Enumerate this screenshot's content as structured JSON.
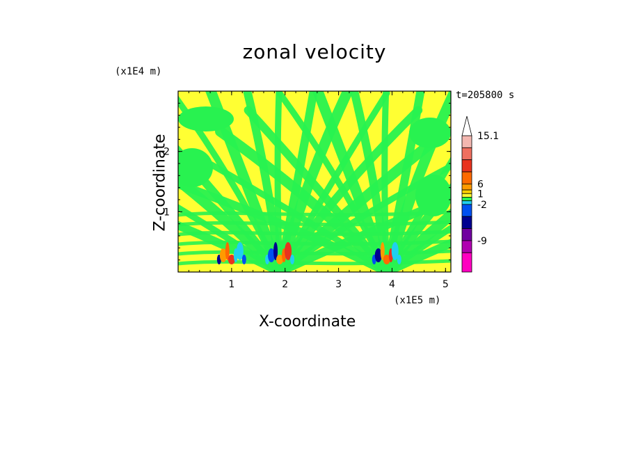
{
  "chart_data": {
    "type": "contour",
    "title": "zonal velocity",
    "xlabel": "X-coordinate",
    "ylabel": "Z-coordinate",
    "x_unit": "(x1E5 m)",
    "z_unit": "(x1E4 m)",
    "time_label": "t=205800 s",
    "xlim": [
      0,
      5.1
    ],
    "zlim": [
      0,
      3
    ],
    "x_ticks": [
      "1",
      "2",
      "3",
      "4",
      "5"
    ],
    "z_ticks": [
      "1",
      "2"
    ],
    "x_tick_values": [
      1,
      2,
      3,
      4,
      5
    ],
    "z_tick_values": [
      1,
      2
    ],
    "colorbar": {
      "labels": [
        "15.1",
        "6",
        "1",
        "-2",
        "-9"
      ],
      "colors": [
        "#f3b7b0",
        "#ef6f5f",
        "#e8331f",
        "#ff6a00",
        "#ff9a00",
        "#ffd000",
        "#ffff33",
        "#28f250",
        "#20d0f0",
        "#0050f0",
        "#000090",
        "#7000a0",
        "#b000b0",
        "#ff00c0"
      ]
    },
    "wave_sources_x": [
      1.9,
      3.9
    ],
    "background_color": "#ffff33",
    "main_band_color": "#28f250"
  }
}
